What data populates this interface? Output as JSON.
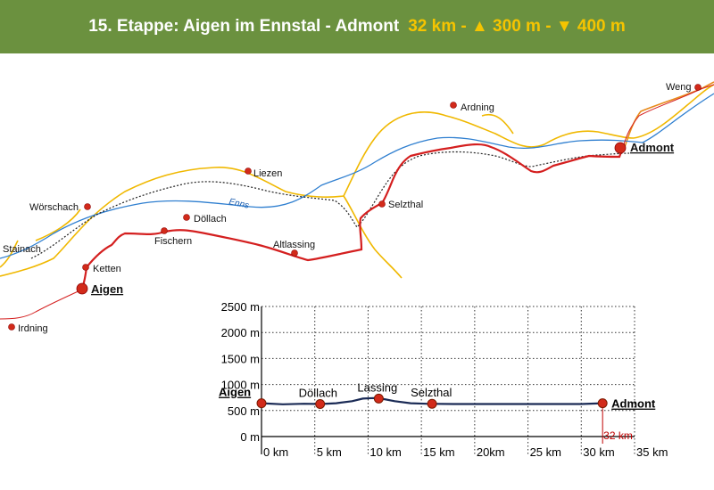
{
  "header": {
    "title": "15. Etappe: Aigen im Ennstal - Admont",
    "stats": "32 km - ▲ 300 m - ▼ 400 m"
  },
  "colors": {
    "header_bg": "#6b913f",
    "stats_text": "#f5c400",
    "route": "#d41f1f",
    "road": "#f0b800",
    "river": "#2f7fd0",
    "rail": "#222222",
    "profile_line": "#1a2a55",
    "point": "#d22a1a"
  },
  "map": {
    "river_name": "Enns",
    "places": [
      {
        "name": "Weng",
        "major": false
      },
      {
        "name": "Ardning",
        "major": false
      },
      {
        "name": "Admont",
        "major": true
      },
      {
        "name": "Liezen",
        "major": false
      },
      {
        "name": "Wörschach",
        "major": false
      },
      {
        "name": "Döllach",
        "major": false
      },
      {
        "name": "Selzthal",
        "major": false
      },
      {
        "name": "Fischern",
        "major": false
      },
      {
        "name": "Altlassing",
        "major": false
      },
      {
        "name": "Stainach",
        "major": false
      },
      {
        "name": "Ketten",
        "major": false
      },
      {
        "name": "Aigen",
        "major": true
      },
      {
        "name": "Irdning",
        "major": false
      }
    ]
  },
  "chart_data": {
    "type": "line",
    "title": "",
    "xlabel": "",
    "ylabel": "",
    "xlim": [
      0,
      35
    ],
    "ylim": [
      0,
      2500
    ],
    "x_ticks": [
      "0 km",
      "5 km",
      "10 km",
      "15 km",
      "20km",
      "25 km",
      "30 km",
      "35 km"
    ],
    "x_tick_values": [
      0,
      5,
      10,
      15,
      20,
      25,
      30,
      35
    ],
    "y_ticks": [
      "0 m",
      "500 m",
      "1000 m",
      "1500 m",
      "2000 m",
      "2500 m"
    ],
    "y_tick_values": [
      0,
      500,
      1000,
      1500,
      2000,
      2500
    ],
    "grid": true,
    "series": [
      {
        "x": [
          0,
          2,
          4,
          5.5,
          7,
          8.5,
          9.5,
          10.5,
          11.5,
          12.5,
          14,
          15.5,
          18,
          22,
          26,
          30,
          32
        ],
        "y": [
          640,
          620,
          630,
          625,
          640,
          680,
          730,
          740,
          720,
          680,
          640,
          630,
          625,
          625,
          625,
          625,
          640
        ]
      }
    ],
    "waypoints": [
      {
        "label": "Aigen",
        "x": 0,
        "y": 640,
        "major": true
      },
      {
        "label": "Döllach",
        "x": 5.5,
        "y": 625,
        "major": false
      },
      {
        "label": "Lassing",
        "x": 11,
        "y": 730,
        "major": false
      },
      {
        "label": "Selzthal",
        "x": 16,
        "y": 630,
        "major": false
      },
      {
        "label": "Admont",
        "x": 32,
        "y": 640,
        "major": true
      }
    ],
    "total_label": "32 km",
    "total_value": 32
  }
}
